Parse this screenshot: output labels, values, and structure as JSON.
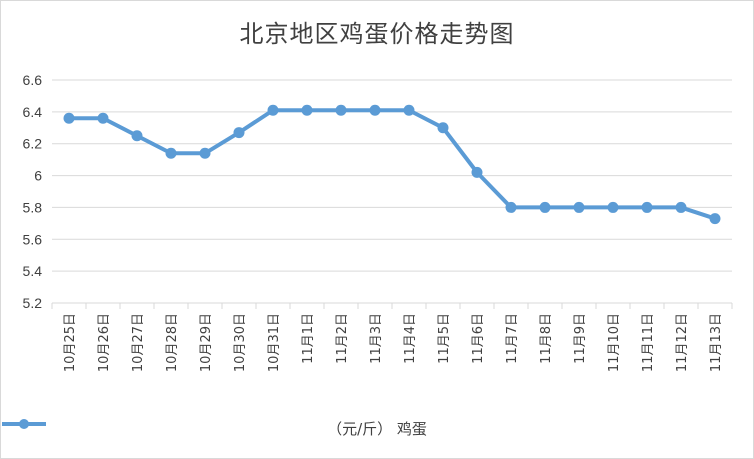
{
  "chart_data": {
    "type": "line",
    "title": "北京地区鸡蛋价格走势图",
    "categories": [
      "10月25日",
      "10月26日",
      "10月27日",
      "10月28日",
      "10月29日",
      "10月30日",
      "10月31日",
      "11月1日",
      "11月2日",
      "11月3日",
      "11月4日",
      "11月5日",
      "11月6日",
      "11月7日",
      "11月8日",
      "11月9日",
      "11月10日",
      "11月11日",
      "11月12日",
      "11月13日"
    ],
    "series": [
      {
        "name": "（元/斤） 鸡蛋",
        "values": [
          6.36,
          6.36,
          6.25,
          6.14,
          6.14,
          6.27,
          6.41,
          6.41,
          6.41,
          6.41,
          6.41,
          6.3,
          6.02,
          5.8,
          5.8,
          5.8,
          5.8,
          5.8,
          5.8,
          5.73
        ]
      }
    ],
    "yticks": [
      "5.2",
      "5.4",
      "5.6",
      "5.8",
      "6",
      "6.2",
      "6.4",
      "6.6"
    ],
    "ylim": [
      5.2,
      6.6
    ],
    "grid": true,
    "legend": "bottom",
    "colors": {
      "line": "#5b9bd5",
      "grid": "#d9d9d9",
      "text": "#404040"
    }
  }
}
